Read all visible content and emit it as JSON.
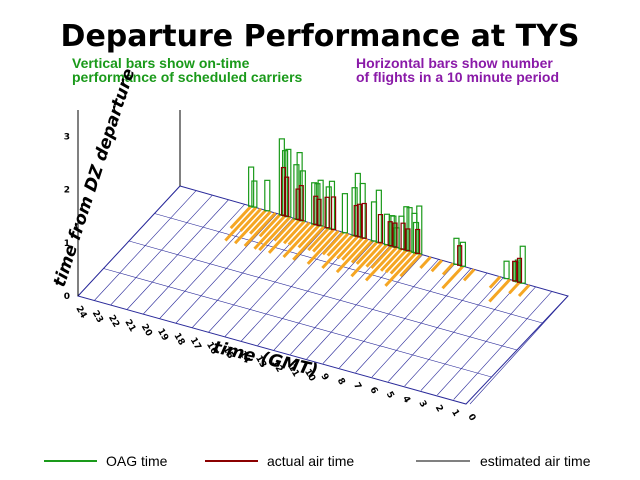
{
  "chart_data": {
    "type": "bar",
    "title": "Departure Performance at TYS",
    "notes": {
      "left_line1": "Vertical bars show on-time",
      "left_line2": "performance of scheduled carriers",
      "right_line1": "Horizontal bars show number",
      "right_line2": "of flights in a 10 minute period"
    },
    "xlabel": "time (GMT)",
    "ylabel": "time from DZ departure",
    "x_ticks": [
      "24",
      "23",
      "22",
      "21",
      "20",
      "19",
      "18",
      "17",
      "16",
      "15",
      "14",
      "13",
      "12",
      "11",
      "10",
      "9",
      "8",
      "7",
      "6",
      "5",
      "4",
      "3",
      "2",
      "1",
      "0"
    ],
    "y_ticks": [
      "0",
      "1",
      "2",
      "3"
    ],
    "ylim": [
      0,
      3.5
    ],
    "legend": [
      {
        "label": "OAG time",
        "color": "#1a9a1a"
      },
      {
        "label": "actual air time",
        "color": "#8b0000"
      },
      {
        "label": "estimated air time",
        "color": "#000000"
      }
    ],
    "series": [
      {
        "name": "OAG time",
        "color": "#1a9a1a",
        "x": [
          19.6,
          19.4,
          18.6,
          17.7,
          17.5,
          17.3,
          16.8,
          16.6,
          16.4,
          15.7,
          15.5,
          15.3,
          14.8,
          14.6,
          13.8,
          13.2,
          13.0,
          12.7,
          12.0,
          11.7,
          11.2,
          10.9,
          10.8,
          10.6,
          10.3,
          10.0,
          9.8,
          9.5,
          9.4,
          9.2,
          6.9,
          6.5,
          3.8,
          3.2,
          3.1,
          2.8
        ],
        "values": [
          1.8,
          1.2,
          1.4,
          3.5,
          3.0,
          3.1,
          2.5,
          3.1,
          2.3,
          1.9,
          1.9,
          2.1,
          1.9,
          2.2,
          1.8,
          2.2,
          2.9,
          2.5,
          1.8,
          2.4,
          1.4,
          1.4,
          1.4,
          0.9,
          1.5,
          2.0,
          2.0,
          1.8,
          1.4,
          2.2,
          1.2,
          1.1,
          0.8,
          0.9,
          1.0,
          1.7
        ]
      },
      {
        "name": "actual air time",
        "color": "#8b0000",
        "x": [
          17.6,
          17.4,
          16.7,
          16.5,
          15.6,
          15.4,
          14.9,
          14.5,
          13.1,
          12.9,
          12.6,
          11.6,
          11.0,
          10.7,
          10.2,
          9.9,
          9.3,
          6.7,
          3.3,
          3.0
        ],
        "values": [
          2.2,
          1.8,
          1.4,
          1.6,
          1.3,
          1.2,
          1.4,
          1.5,
          1.4,
          1.5,
          1.6,
          1.3,
          1.1,
          1.1,
          1.2,
          1.0,
          1.1,
          0.9,
          0.9,
          1.1
        ]
      },
      {
        "name": "flights per 10 minutes",
        "color": "#f5a623",
        "x": [
          19.6,
          19.3,
          19.0,
          18.7,
          18.4,
          18.1,
          17.8,
          17.5,
          17.2,
          16.9,
          16.6,
          16.3,
          16.0,
          15.7,
          15.4,
          15.1,
          14.8,
          14.5,
          14.2,
          13.9,
          13.6,
          13.3,
          13.0,
          12.7,
          12.4,
          12.1,
          11.8,
          11.5,
          11.2,
          10.9,
          10.6,
          10.3,
          10.0,
          9.7,
          9.4,
          9.1,
          8.5,
          7.8,
          7.1,
          6.5,
          5.8,
          4.2,
          3.6,
          3.0,
          2.4
        ],
        "values": [
          2,
          3,
          2,
          3,
          2,
          3,
          2,
          3,
          3,
          2,
          3,
          2,
          2,
          3,
          2,
          3,
          2,
          2,
          3,
          2,
          2,
          3,
          2,
          2,
          3,
          2,
          2,
          3,
          2,
          2,
          3,
          2,
          2,
          2,
          3,
          2,
          1,
          1,
          1,
          2,
          1,
          1,
          2,
          1,
          1
        ]
      }
    ]
  }
}
